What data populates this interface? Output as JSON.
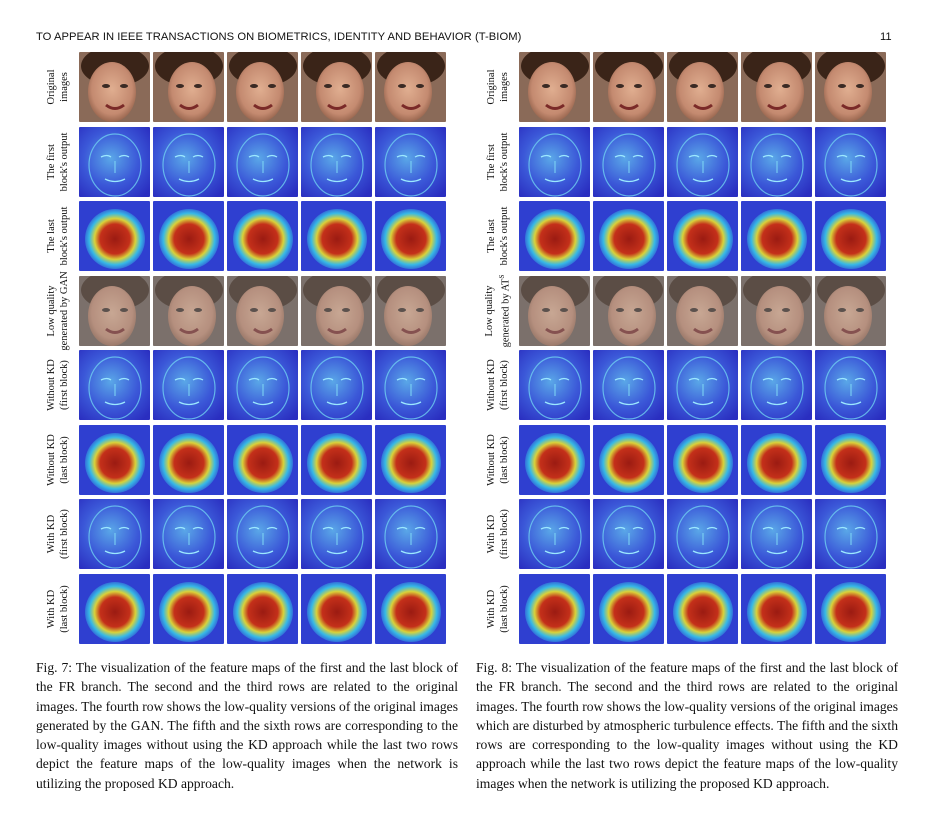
{
  "header": {
    "journal": "TO APPEAR IN IEEE TRANSACTIONS ON BIOMETRICS, IDENTITY AND BEHAVIOR (T-BIOM)",
    "page_number": "11"
  },
  "figures": [
    {
      "id": "fig7",
      "row_labels": [
        [
          "Original",
          "images"
        ],
        [
          "The first",
          "block's output"
        ],
        [
          "The last",
          "block's output"
        ],
        [
          "Low quality",
          "generated by GAN"
        ],
        [
          "Without KD",
          "(first block)"
        ],
        [
          "Without KD",
          "(last block)"
        ],
        [
          "With KD",
          "(first block)"
        ],
        [
          "With KD",
          "(last block)"
        ]
      ],
      "caption": "Fig. 7: The visualization of the feature maps of the first and the last block of the FR branch. The second and the third rows are related to the original images. The fourth row shows the low-quality versions of the original images generated by the GAN. The fifth and the sixth rows are corresponding to the low-quality images without using the KD approach while the last two rows depict the feature maps of the low-quality images when the network is utilizing the proposed KD approach."
    },
    {
      "id": "fig8",
      "row_labels": [
        [
          "Original",
          "images"
        ],
        [
          "The first",
          "block's output"
        ],
        [
          "The last",
          "block's output"
        ],
        [
          "Low quality",
          "generated by AT"
        ],
        [
          "Without KD",
          "(first block)"
        ],
        [
          "Without KD",
          "(last block)"
        ],
        [
          "With KD",
          "(first block)"
        ],
        [
          "With KD",
          "(last block)"
        ]
      ],
      "row4_superscript": "S",
      "caption": "Fig. 8: The visualization of the feature maps of the first and the last block of the FR branch. The second and the third rows are related to the original images. The fourth row shows the low-quality versions of the original images which are disturbed by atmospheric turbulence effects. The fifth and the sixth rows are corresponding to the low-quality images without using the KD approach while the last two rows depict the feature maps of the low-quality images when the network is utilizing the proposed KD approach."
    }
  ],
  "tile_kinds": [
    "photo",
    "feature-map-first",
    "feature-map-last",
    "low-quality-photo",
    "feature-map-first",
    "feature-map-last",
    "feature-map-first",
    "feature-map-last"
  ],
  "colors": {
    "feature_blue": "#2f3fd0",
    "feature_cyan": "#37b9e6",
    "heat_red": "#9b1b12",
    "heat_yellow": "#d9d23a",
    "skin": "#c48a70",
    "hair": "#3a2418"
  }
}
